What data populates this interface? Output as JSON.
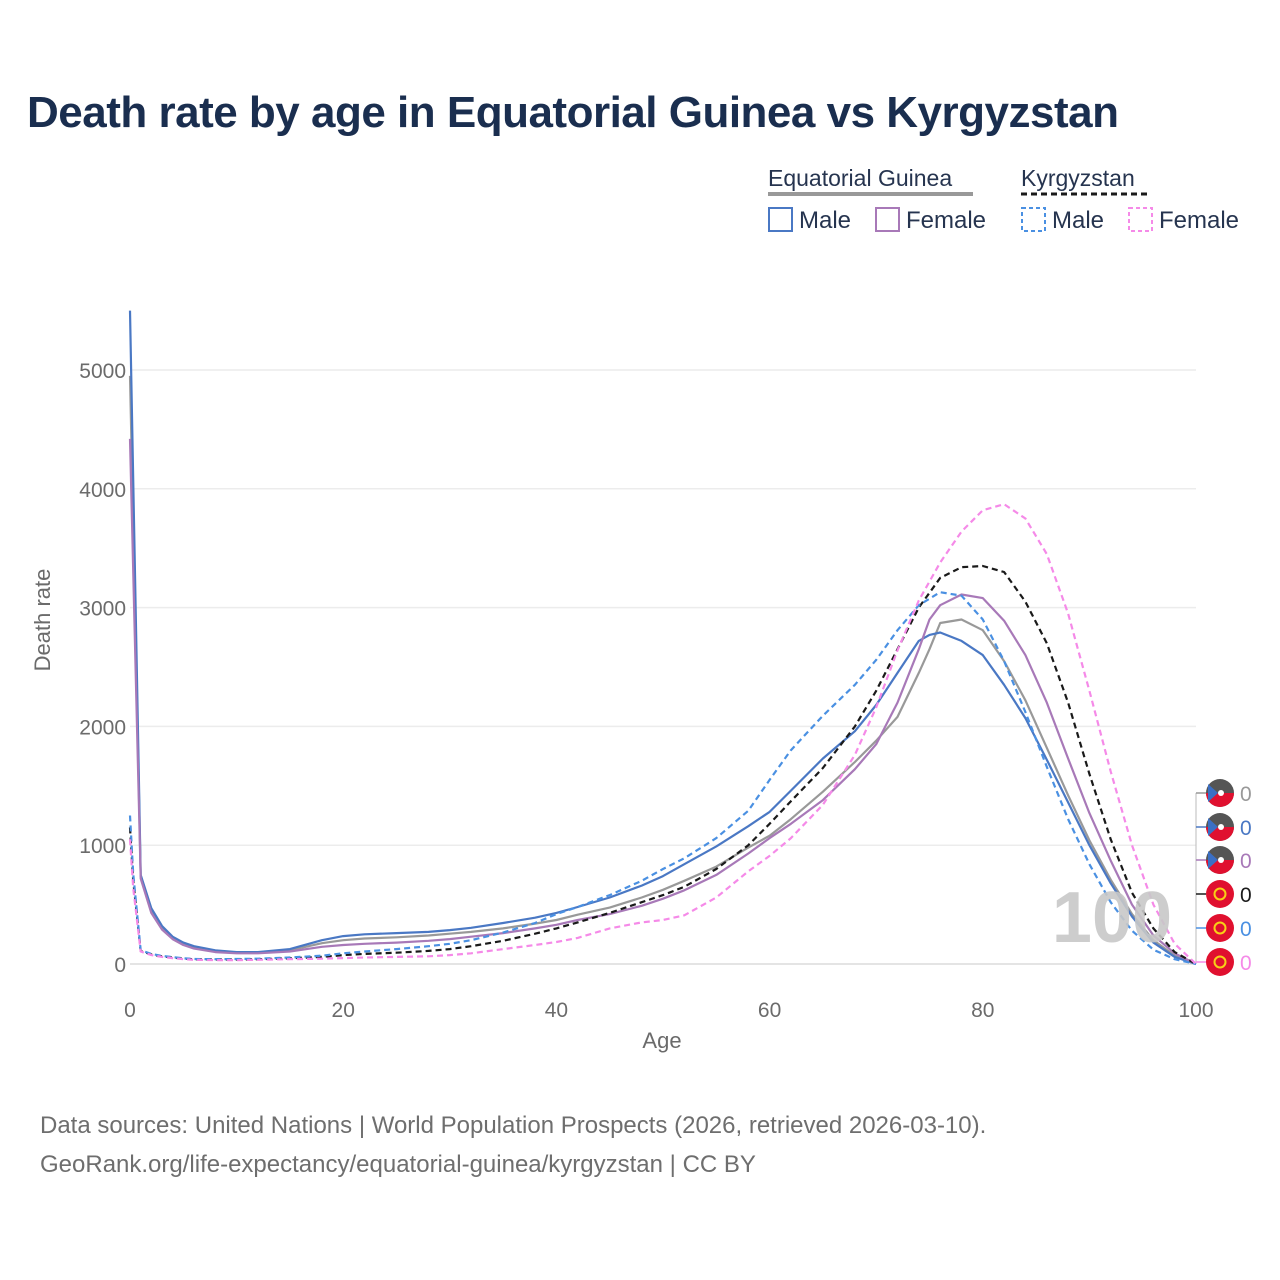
{
  "title": "Death rate by age in Equatorial Guinea vs Kyrgyzstan",
  "legend": {
    "groups": [
      {
        "name": "Equatorial Guinea",
        "items": [
          "Male",
          "Female"
        ]
      },
      {
        "name": "Kyrgyzstan",
        "items": [
          "Male",
          "Female"
        ]
      }
    ]
  },
  "overlay_age": "100",
  "end_labels": [
    "0",
    "0",
    "0",
    "0",
    "0",
    "0"
  ],
  "source": {
    "line1": "Data sources: United Nations | World Population Prospects (2026, retrieved 2026-03-10).",
    "line2": "GeoRank.org/life-expectancy/equatorial-guinea/kyrgyzstan | CC BY"
  },
  "colors": {
    "eg_total": "#999999",
    "eg_male": "#4a78c4",
    "eg_female": "#a879b8",
    "kg_total": "#1a1a1a",
    "kg_male": "#4a90e2",
    "kg_female": "#f58ae8",
    "flag_red": "#e0102f",
    "flag_dark": "#555555"
  },
  "chart_data": {
    "type": "line",
    "title": "Death rate by age in Equatorial Guinea vs Kyrgyzstan",
    "xlabel": "Age",
    "ylabel": "Death rate",
    "xlim": [
      0,
      100
    ],
    "ylim": [
      0,
      5500
    ],
    "x_ticks": [
      0,
      20,
      40,
      60,
      80,
      100
    ],
    "y_ticks": [
      0,
      1000,
      2000,
      3000,
      4000,
      5000
    ],
    "series": [
      {
        "name": "Equatorial Guinea",
        "key": "eg_total",
        "dash": "solid",
        "x": [
          0,
          1,
          2,
          3,
          4,
          5,
          6,
          8,
          10,
          12,
          15,
          18,
          20,
          22,
          25,
          28,
          30,
          32,
          35,
          38,
          40,
          42,
          45,
          48,
          50,
          52,
          55,
          58,
          60,
          62,
          65,
          68,
          70,
          72,
          74,
          75,
          76,
          78,
          80,
          82,
          84,
          86,
          88,
          90,
          92,
          94,
          96,
          98,
          100
        ],
        "y": [
          4950,
          740,
          450,
          300,
          220,
          170,
          140,
          110,
          95,
          95,
          115,
          175,
          200,
          215,
          225,
          240,
          255,
          270,
          300,
          340,
          370,
          415,
          475,
          560,
          625,
          700,
          820,
          980,
          1080,
          1220,
          1450,
          1700,
          1880,
          2080,
          2450,
          2650,
          2870,
          2900,
          2810,
          2550,
          2220,
          1820,
          1420,
          1040,
          710,
          420,
          200,
          70,
          0
        ]
      },
      {
        "name": "Equatorial Guinea Male",
        "key": "eg_male",
        "dash": "solid",
        "x": [
          0,
          1,
          2,
          3,
          4,
          5,
          6,
          8,
          10,
          12,
          15,
          18,
          20,
          22,
          25,
          28,
          30,
          32,
          35,
          38,
          40,
          42,
          45,
          48,
          50,
          52,
          55,
          58,
          60,
          62,
          65,
          68,
          70,
          72,
          74,
          75,
          76,
          78,
          80,
          82,
          84,
          86,
          88,
          90,
          92,
          94,
          96,
          98,
          100
        ],
        "y": [
          5500,
          750,
          470,
          320,
          230,
          180,
          150,
          115,
          100,
          100,
          125,
          200,
          235,
          250,
          260,
          270,
          285,
          305,
          345,
          390,
          430,
          480,
          560,
          660,
          740,
          840,
          990,
          1160,
          1280,
          1460,
          1730,
          1960,
          2180,
          2450,
          2720,
          2770,
          2790,
          2720,
          2600,
          2350,
          2070,
          1720,
          1360,
          1000,
          680,
          400,
          180,
          60,
          0
        ]
      },
      {
        "name": "Equatorial Guinea Female",
        "key": "eg_female",
        "dash": "solid",
        "x": [
          0,
          1,
          2,
          3,
          4,
          5,
          6,
          8,
          10,
          12,
          15,
          18,
          20,
          22,
          25,
          28,
          30,
          32,
          35,
          38,
          40,
          42,
          45,
          48,
          50,
          52,
          55,
          58,
          60,
          62,
          65,
          68,
          70,
          72,
          74,
          75,
          76,
          78,
          80,
          82,
          84,
          86,
          88,
          90,
          92,
          94,
          96,
          98,
          100
        ],
        "y": [
          4420,
          720,
          430,
          290,
          210,
          160,
          130,
          100,
          90,
          90,
          105,
          145,
          160,
          170,
          180,
          195,
          210,
          230,
          260,
          300,
          330,
          370,
          420,
          490,
          550,
          620,
          750,
          930,
          1060,
          1180,
          1380,
          1640,
          1850,
          2200,
          2650,
          2900,
          3020,
          3110,
          3080,
          2890,
          2600,
          2200,
          1730,
          1270,
          870,
          500,
          240,
          90,
          0
        ]
      },
      {
        "name": "Kyrgyzstan",
        "key": "kg_total",
        "dash": "dashed",
        "x": [
          0,
          0.3,
          1,
          2,
          3,
          4,
          5,
          6,
          8,
          10,
          12,
          15,
          18,
          20,
          22,
          25,
          28,
          30,
          32,
          35,
          38,
          40,
          42,
          45,
          48,
          50,
          52,
          55,
          58,
          60,
          62,
          65,
          68,
          70,
          72,
          74,
          76,
          78,
          80,
          82,
          84,
          86,
          88,
          90,
          92,
          94,
          96,
          98,
          100
        ],
        "y": [
          1150,
          700,
          110,
          80,
          65,
          55,
          45,
          40,
          38,
          38,
          40,
          48,
          60,
          75,
          85,
          95,
          110,
          125,
          150,
          195,
          255,
          300,
          350,
          430,
          520,
          580,
          650,
          800,
          1000,
          1180,
          1370,
          1650,
          2000,
          2300,
          2650,
          3000,
          3250,
          3340,
          3350,
          3300,
          3050,
          2700,
          2200,
          1600,
          1050,
          600,
          300,
          100,
          0
        ]
      },
      {
        "name": "Kyrgyzstan Male",
        "key": "kg_male",
        "dash": "dashed",
        "x": [
          0,
          0.3,
          1,
          2,
          3,
          4,
          5,
          6,
          8,
          10,
          12,
          15,
          18,
          20,
          22,
          25,
          28,
          30,
          32,
          35,
          38,
          40,
          42,
          45,
          48,
          50,
          52,
          55,
          58,
          60,
          62,
          65,
          68,
          70,
          72,
          74,
          76,
          78,
          80,
          82,
          84,
          86,
          88,
          90,
          92,
          94,
          96,
          98,
          100
        ],
        "y": [
          1250,
          760,
          115,
          85,
          68,
          58,
          48,
          42,
          40,
          42,
          45,
          55,
          70,
          90,
          105,
          125,
          150,
          170,
          200,
          265,
          345,
          420,
          480,
          580,
          700,
          800,
          890,
          1060,
          1290,
          1550,
          1800,
          2090,
          2350,
          2560,
          2810,
          3020,
          3130,
          3100,
          2900,
          2550,
          2120,
          1660,
          1220,
          840,
          520,
          280,
          120,
          40,
          0
        ]
      },
      {
        "name": "Kyrgyzstan Female",
        "key": "kg_female",
        "dash": "dashed",
        "x": [
          0,
          0.3,
          1,
          2,
          3,
          4,
          5,
          6,
          8,
          10,
          12,
          15,
          18,
          20,
          22,
          25,
          28,
          30,
          32,
          35,
          38,
          40,
          42,
          45,
          48,
          50,
          52,
          55,
          58,
          60,
          62,
          65,
          68,
          70,
          72,
          74,
          76,
          78,
          80,
          82,
          84,
          86,
          88,
          90,
          92,
          94,
          96,
          98,
          100
        ],
        "y": [
          1050,
          640,
          105,
          75,
          60,
          50,
          40,
          35,
          33,
          33,
          35,
          40,
          45,
          50,
          55,
          60,
          65,
          75,
          90,
          125,
          160,
          185,
          220,
          300,
          350,
          370,
          410,
          560,
          780,
          910,
          1060,
          1340,
          1760,
          2160,
          2640,
          3060,
          3380,
          3640,
          3820,
          3870,
          3750,
          3450,
          2950,
          2300,
          1620,
          1000,
          500,
          170,
          0
        ]
      }
    ]
  }
}
